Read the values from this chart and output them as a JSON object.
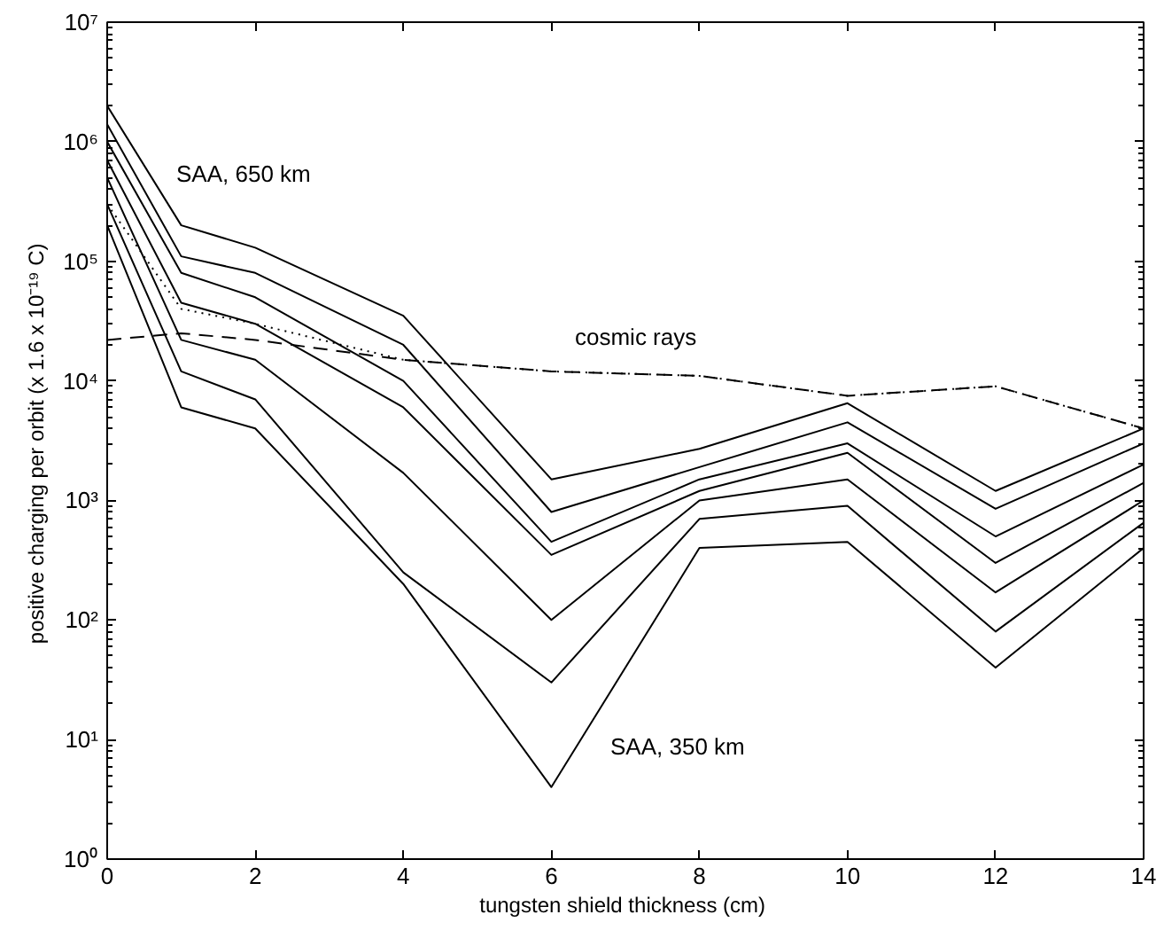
{
  "chart_data": {
    "type": "line",
    "xlabel": "tungsten shield thickness  (cm)",
    "ylabel": "positive charging per orbit  (x 1.6 x 10⁻¹⁹ C)",
    "x": [
      0,
      1,
      2,
      4,
      6,
      8,
      10,
      12,
      14
    ],
    "series": [
      {
        "color": "#000000",
        "line_style": "solid",
        "values": [
          2000000,
          200000,
          130000,
          35000,
          1500,
          2700,
          6500,
          1200,
          4000
        ]
      },
      {
        "color": "#000000",
        "line_style": "solid",
        "values": [
          1400000,
          110000,
          80000,
          20000,
          800,
          1900,
          4500,
          850,
          3000
        ]
      },
      {
        "color": "#000000",
        "line_style": "solid",
        "values": [
          1000000,
          80000,
          50000,
          10000,
          450,
          1500,
          3000,
          500,
          2000
        ]
      },
      {
        "color": "#000000",
        "line_style": "solid",
        "values": [
          700000,
          45000,
          30000,
          6000,
          350,
          1200,
          2500,
          300,
          1400
        ]
      },
      {
        "color": "#000000",
        "line_style": "solid",
        "values": [
          500000,
          22000,
          15000,
          1700,
          100,
          1000,
          1500,
          170,
          1000
        ]
      },
      {
        "color": "#000000",
        "line_style": "solid",
        "values": [
          300000,
          12000,
          7000,
          250,
          30,
          700,
          900,
          80,
          650
        ]
      },
      {
        "color": "#000000",
        "line_style": "solid",
        "values": [
          200000,
          6000,
          4000,
          200,
          4,
          400,
          450,
          40,
          400
        ]
      },
      {
        "color": "#000000",
        "line_style": "dotted",
        "values": [
          300000,
          40000,
          30000,
          15000,
          12000,
          11000,
          7500,
          9000,
          4000
        ]
      },
      {
        "color": "#000000",
        "line_style": "dashed",
        "values": [
          22000,
          25000,
          22000,
          15000,
          12000,
          11000,
          7500,
          9000,
          4000
        ]
      }
    ],
    "log": "y",
    "xlim": [
      0,
      14
    ],
    "ylim": [
      1,
      10000000
    ],
    "xticks": [
      0,
      2,
      4,
      6,
      8,
      10,
      12,
      14
    ],
    "yticks": [
      {
        "value": 1,
        "label": "10⁰"
      },
      {
        "value": 10,
        "label": "10¹"
      },
      {
        "value": 100,
        "label": "10²"
      },
      {
        "value": 1000,
        "label": "10³"
      },
      {
        "value": 10000,
        "label": "10⁴"
      },
      {
        "value": 100000,
        "label": "10⁵"
      },
      {
        "value": 1000000,
        "label": "10⁶"
      },
      {
        "value": 10000000,
        "label": "10⁷"
      }
    ],
    "annotations": [
      "SAA, 650 km",
      "cosmic rays",
      "SAA, 350 km"
    ],
    "grid": false
  }
}
